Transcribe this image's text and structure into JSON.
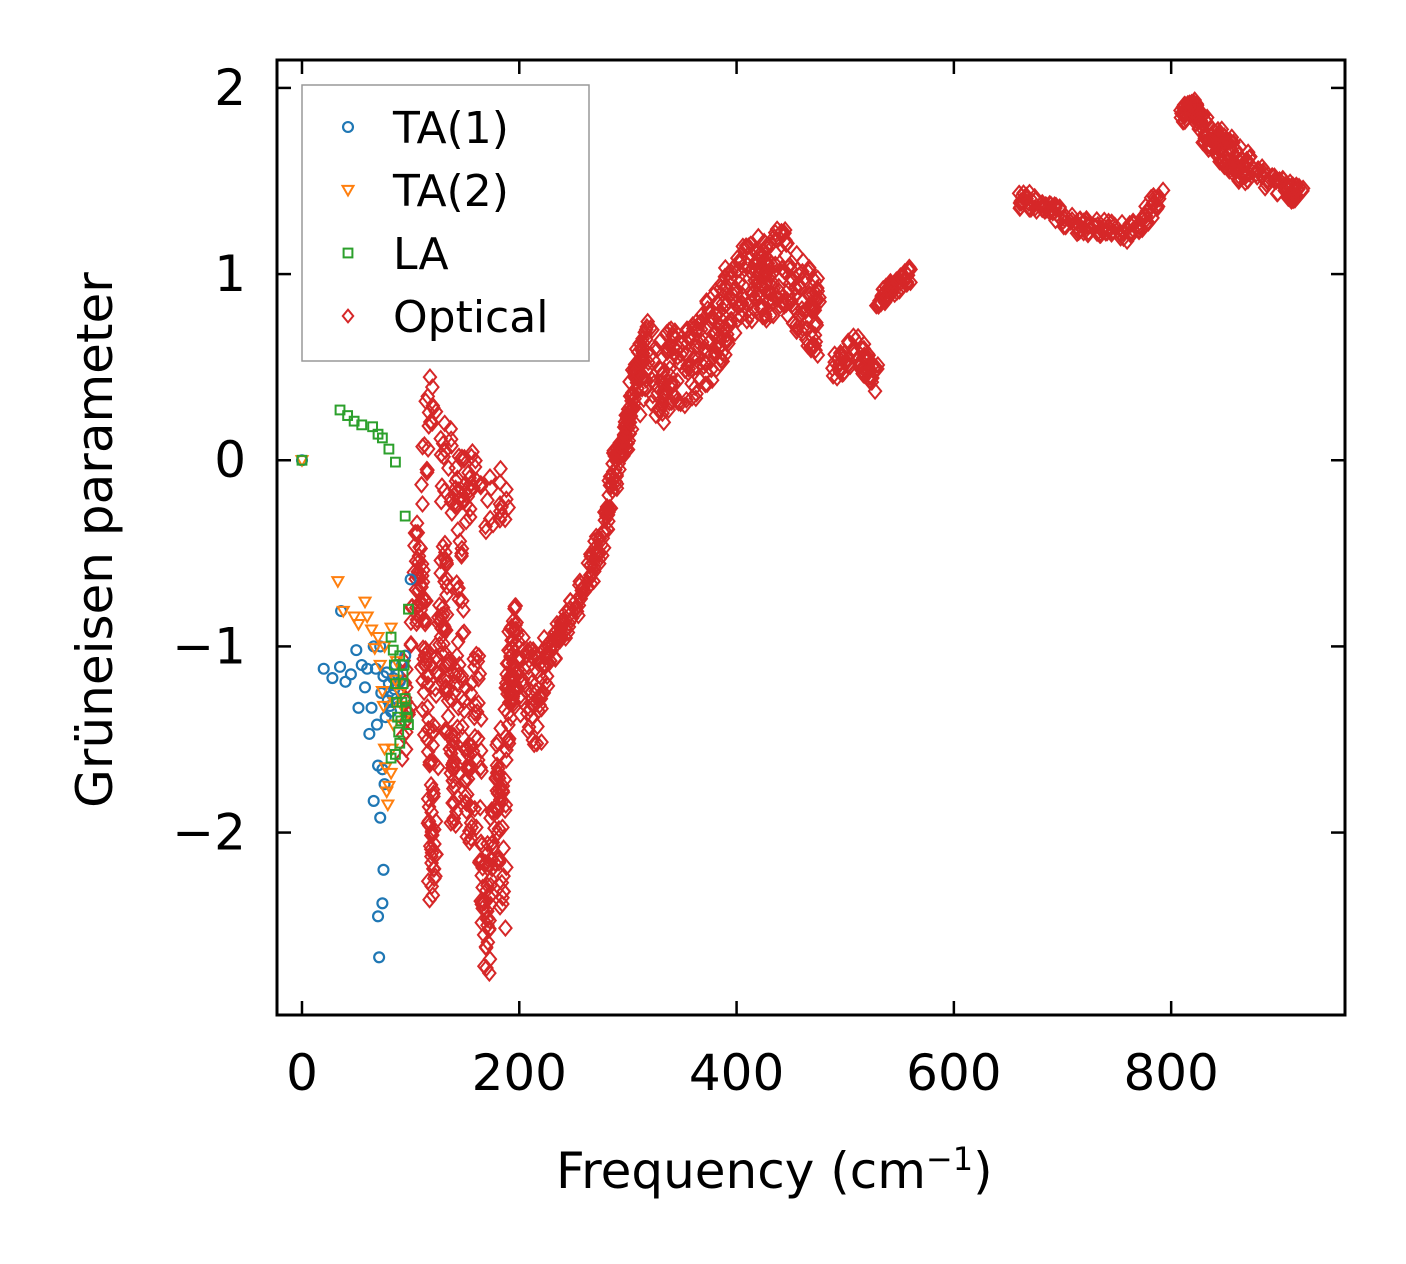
{
  "chart_data": {
    "type": "scatter",
    "title": "",
    "xlabel": "Frequency (cm",
    "xlabel_superscript": "−1",
    "xlabel_suffix": ")",
    "ylabel": "Grüneisen parameter",
    "xlim": [
      -23,
      960
    ],
    "ylim": [
      -2.98,
      2.15
    ],
    "xticks": [
      0,
      200,
      400,
      600,
      800
    ],
    "yticks": [
      -2,
      -1,
      0,
      1,
      2
    ],
    "xtick_labels": [
      "0",
      "200",
      "400",
      "600",
      "800"
    ],
    "ytick_labels": [
      "−2",
      "−1",
      "0",
      "1",
      "2"
    ],
    "legend_position": "top-left",
    "series": [
      {
        "name": "TA(1)",
        "marker": "circle",
        "color": "#1f77b4",
        "points": [
          [
            0,
            0
          ],
          [
            20,
            -1.12
          ],
          [
            28,
            -1.17
          ],
          [
            35,
            -1.11
          ],
          [
            40,
            -1.19
          ],
          [
            45,
            -1.15
          ],
          [
            50,
            -1.02
          ],
          [
            52,
            -1.33
          ],
          [
            55,
            -1.1
          ],
          [
            58,
            -1.22
          ],
          [
            60,
            -1.12
          ],
          [
            62,
            -1.47
          ],
          [
            64,
            -1.33
          ],
          [
            66,
            -1.83
          ],
          [
            68,
            -1.12
          ],
          [
            69,
            -1.42
          ],
          [
            70,
            -1.64
          ],
          [
            70,
            -2.45
          ],
          [
            71,
            -2.67
          ],
          [
            72,
            -1.92
          ],
          [
            73,
            -1.25
          ],
          [
            74,
            -1.66
          ],
          [
            74,
            -2.38
          ],
          [
            75,
            -1.16
          ],
          [
            75,
            -2.2
          ],
          [
            76,
            -1.74
          ],
          [
            77,
            -1.38
          ],
          [
            78,
            -1.14
          ],
          [
            79,
            -1.29
          ],
          [
            80,
            -1.2
          ],
          [
            81,
            -1.32
          ],
          [
            82,
            -1.35
          ],
          [
            83,
            -1.26
          ],
          [
            84,
            -1.17
          ],
          [
            85,
            -1.23
          ],
          [
            86,
            -1.1
          ],
          [
            87,
            -1.28
          ],
          [
            88,
            -1.15
          ],
          [
            90,
            -1.19
          ],
          [
            92,
            -1.1
          ],
          [
            95,
            -1.05
          ],
          [
            100,
            -0.64
          ],
          [
            36,
            -0.81
          ],
          [
            66,
            -1.0
          ],
          [
            72,
            -1.0
          ]
        ]
      },
      {
        "name": "TA(2)",
        "marker": "triangle-down",
        "color": "#ff7f0e",
        "points": [
          [
            0,
            0
          ],
          [
            33,
            -0.65
          ],
          [
            38,
            -0.81
          ],
          [
            48,
            -0.84
          ],
          [
            52,
            -0.88
          ],
          [
            58,
            -0.76
          ],
          [
            60,
            -0.84
          ],
          [
            64,
            -0.91
          ],
          [
            67,
            -1.01
          ],
          [
            70,
            -0.95
          ],
          [
            72,
            -1.1
          ],
          [
            74,
            -1.24
          ],
          [
            75,
            -1.32
          ],
          [
            76,
            -1.55
          ],
          [
            77,
            -1.65
          ],
          [
            78,
            -1.78
          ],
          [
            79,
            -1.85
          ],
          [
            80,
            -1.75
          ],
          [
            82,
            -1.68
          ],
          [
            83,
            -1.55
          ],
          [
            84,
            -1.42
          ],
          [
            85,
            -1.3
          ],
          [
            86,
            -1.18
          ],
          [
            87,
            -1.08
          ],
          [
            88,
            -1.2
          ],
          [
            90,
            -1.25
          ],
          [
            92,
            -1.32
          ],
          [
            95,
            -1.38
          ],
          [
            82,
            -0.9
          ],
          [
            76,
            -1.0
          ]
        ]
      },
      {
        "name": "LA",
        "marker": "square",
        "color": "#2ca02c",
        "points": [
          [
            0,
            0
          ],
          [
            35,
            0.27
          ],
          [
            42,
            0.24
          ],
          [
            48,
            0.21
          ],
          [
            55,
            0.19
          ],
          [
            65,
            0.18
          ],
          [
            70,
            0.14
          ],
          [
            74,
            0.12
          ],
          [
            80,
            0.06
          ],
          [
            86,
            -0.01
          ],
          [
            95,
            -0.3
          ],
          [
            98,
            -0.8
          ],
          [
            82,
            -0.95
          ],
          [
            84,
            -1.02
          ],
          [
            85,
            -1.1
          ],
          [
            86,
            -1.2
          ],
          [
            87,
            -1.3
          ],
          [
            88,
            -1.38
          ],
          [
            89,
            -1.46
          ],
          [
            90,
            -1.52
          ],
          [
            91,
            -1.4
          ],
          [
            92,
            -1.3
          ],
          [
            93,
            -1.2
          ],
          [
            94,
            -1.1
          ],
          [
            95,
            -1.28
          ],
          [
            96,
            -1.34
          ],
          [
            97,
            -1.38
          ],
          [
            98,
            -1.42
          ],
          [
            82,
            -1.6
          ],
          [
            86,
            -1.58
          ],
          [
            90,
            -1.05
          ],
          [
            93,
            -1.15
          ]
        ]
      },
      {
        "name": "Optical",
        "marker": "diamond",
        "color": "#d62728",
        "segments": [
          {
            "x": [
              [
                95,
                -1.4
              ],
              [
                105,
                -0.6
              ],
              [
                110,
                -0.5
              ],
              [
                114,
                -1.2
              ],
              [
                118,
                -1.8
              ],
              [
                120,
                -2.3
              ],
              [
                125,
                -1.1
              ],
              [
                130,
                -0.6
              ],
              [
                135,
                -1.4
              ],
              [
                140,
                -1.8
              ],
              [
                145,
                -0.5
              ],
              [
                150,
                -1.5
              ],
              [
                155,
                -2.0
              ],
              [
                160,
                -1.0
              ],
              [
                165,
                -2.2
              ],
              [
                170,
                -2.6
              ],
              [
                175,
                -2.1
              ],
              [
                180,
                -1.6
              ],
              [
                185,
                -2.3
              ],
              [
                190,
                -1.2
              ],
              [
                195,
                -1.0
              ],
              [
                200,
                -1.1
              ],
              [
                210,
                -1.25
              ],
              [
                220,
                -1.3
              ],
              [
                225,
                -1.1
              ]
            ],
            "n": 520,
            "spread": 0.25
          },
          {
            "x": [
              [
                110,
                -0.2
              ],
              [
                115,
                0.1
              ],
              [
                120,
                0.35
              ],
              [
                125,
                0.2
              ],
              [
                130,
                -0.1
              ],
              [
                135,
                0.1
              ],
              [
                140,
                -0.2
              ],
              [
                145,
                0.0
              ],
              [
                150,
                -0.3
              ],
              [
                155,
                -0.1
              ],
              [
                160,
                -0.05
              ],
              [
                170,
                -0.25
              ],
              [
                180,
                -0.15
              ],
              [
                190,
                -0.25
              ]
            ],
            "n": 90,
            "spread": 0.15
          },
          {
            "x": [
              [
                225,
                -1.1
              ],
              [
                235,
                -0.95
              ],
              [
                245,
                -0.85
              ],
              [
                255,
                -0.75
              ],
              [
                265,
                -0.6
              ],
              [
                275,
                -0.45
              ],
              [
                280,
                -0.3
              ],
              [
                285,
                -0.15
              ],
              [
                290,
                0.0
              ],
              [
                295,
                0.05
              ],
              [
                300,
                0.2
              ],
              [
                305,
                0.4
              ],
              [
                310,
                0.55
              ],
              [
                315,
                0.6
              ]
            ],
            "n": 230,
            "spread": 0.07
          },
          {
            "x": [
              [
                310,
                0.45
              ],
              [
                320,
                0.55
              ],
              [
                330,
                0.4
              ],
              [
                340,
                0.5
              ],
              [
                350,
                0.45
              ],
              [
                360,
                0.55
              ],
              [
                370,
                0.6
              ],
              [
                380,
                0.7
              ],
              [
                390,
                0.8
              ],
              [
                400,
                0.9
              ],
              [
                410,
                0.95
              ],
              [
                420,
                1.0
              ],
              [
                430,
                0.95
              ],
              [
                440,
                1.05
              ],
              [
                450,
                0.95
              ],
              [
                460,
                0.85
              ],
              [
                470,
                0.8
              ],
              [
                475,
                0.75
              ]
            ],
            "n": 420,
            "spread": 0.22
          },
          {
            "x": [
              [
                490,
                0.5
              ],
              [
                500,
                0.55
              ],
              [
                510,
                0.6
              ],
              [
                520,
                0.5
              ],
              [
                530,
                0.45
              ]
            ],
            "n": 70,
            "spread": 0.08
          },
          {
            "x": [
              [
                530,
                0.85
              ],
              [
                540,
                0.9
              ],
              [
                550,
                0.95
              ],
              [
                560,
                1.0
              ]
            ],
            "n": 60,
            "spread": 0.04
          },
          {
            "x": [
              [
                660,
                1.4
              ],
              [
                680,
                1.38
              ],
              [
                700,
                1.3
              ],
              [
                720,
                1.25
              ],
              [
                740,
                1.25
              ],
              [
                760,
                1.22
              ],
              [
                775,
                1.3
              ],
              [
                790,
                1.42
              ]
            ],
            "n": 140,
            "spread": 0.05
          },
          {
            "x": [
              [
                810,
                1.85
              ],
              [
                820,
                1.9
              ],
              [
                830,
                1.8
              ],
              [
                850,
                1.72
              ],
              [
                870,
                1.6
              ],
              [
                890,
                1.5
              ],
              [
                910,
                1.45
              ],
              [
                920,
                1.42
              ]
            ],
            "n": 150,
            "spread": 0.05
          },
          {
            "x": [
              [
                830,
                1.75
              ],
              [
                840,
                1.68
              ],
              [
                850,
                1.6
              ],
              [
                860,
                1.55
              ],
              [
                870,
                1.52
              ]
            ],
            "n": 60,
            "spread": 0.04
          }
        ]
      }
    ]
  }
}
